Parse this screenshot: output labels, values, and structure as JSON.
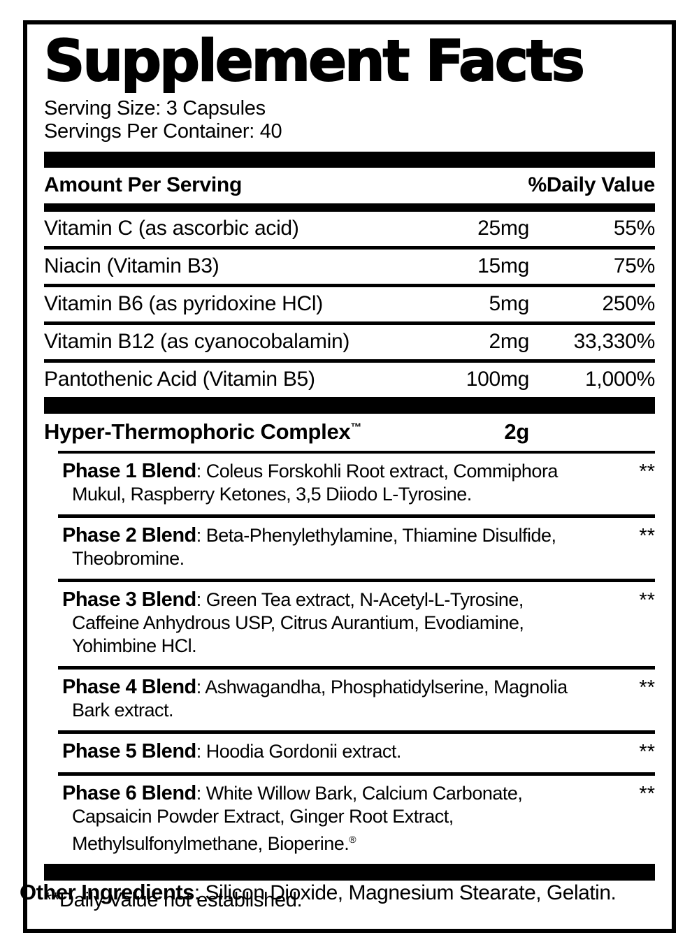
{
  "label": {
    "title": "Supplement Facts",
    "serving_size": "Serving Size: 3 Capsules",
    "servings_per_container": "Servings Per Container: 40",
    "columns": {
      "amount_header": "Amount Per Serving",
      "dv_header": "%Daily Value"
    },
    "nutrients": [
      {
        "name": "Vitamin C (as ascorbic acid)",
        "amount": "25mg",
        "dv": "55%"
      },
      {
        "name": "Niacin (Vitamin B3)",
        "amount": "15mg",
        "dv": "75%"
      },
      {
        "name": "Vitamin B6 (as pyridoxine HCl)",
        "amount": "5mg",
        "dv": "250%"
      },
      {
        "name": "Vitamin B12 (as cyanocobalamin)",
        "amount": "2mg",
        "dv": "33,330%"
      },
      {
        "name": "Pantothenic Acid (Vitamin B5)",
        "amount": "100mg",
        "dv": "1,000%"
      }
    ],
    "complex": {
      "name": "Hyper-Thermophoric Complex",
      "trademark_symbol": "™",
      "amount": "2g",
      "phases": [
        {
          "name": "Phase 1 Blend",
          "description": ": Coleus Forskohli Root extract, Commiphora Mukul, Raspberry Ketones, 3,5 Diiodo L-Tyrosine.",
          "dv": "**"
        },
        {
          "name": "Phase 2 Blend",
          "description": ": Beta-Phenylethylamine, Thiamine Disulfide, Theobromine.",
          "dv": "**"
        },
        {
          "name": "Phase 3 Blend",
          "description": ": Green Tea extract, N-Acetyl-L-Tyrosine, Caffeine Anhydrous USP, Citrus Aurantium, Evodiamine, Yohimbine HCl.",
          "dv": "**"
        },
        {
          "name": "Phase 4 Blend",
          "description": ": Ashwagandha, Phosphatidylserine, Magnolia Bark extract.",
          "dv": "**"
        },
        {
          "name": "Phase 5 Blend",
          "description": ": Hoodia Gordonii extract.",
          "dv": "**"
        },
        {
          "name": "Phase 6 Blend",
          "description": ": White Willow Bark, Calcium Carbonate, Capsaicin Powder Extract, Ginger Root Extract, Methylsulfonylmethane, Bioperine.",
          "registered_symbol": "®",
          "dv": "**"
        }
      ]
    },
    "footnote": "**Daily Value not established.",
    "other_ingredients": {
      "label": "Other Ingredients",
      "value": ": Silicon Dioxide, Magnesium Stearate, Gelatin."
    },
    "colors": {
      "ink": "#000000",
      "background": "#ffffff"
    }
  }
}
